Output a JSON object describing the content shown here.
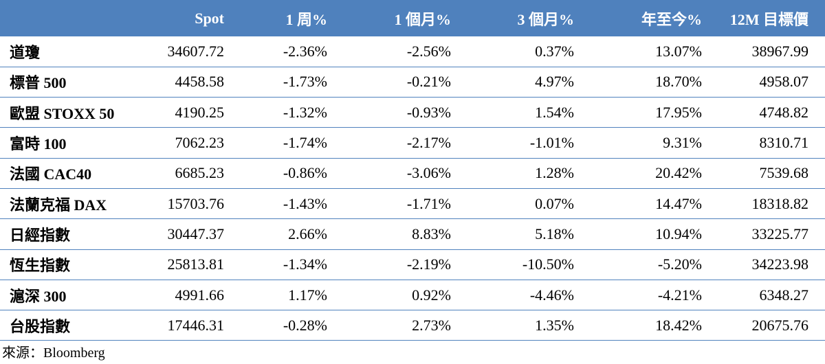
{
  "headers": [
    "",
    "Spot",
    "1 周%",
    "1 個月%",
    "3 個月%",
    "年至今%",
    "12M 目標價"
  ],
  "rows": [
    [
      "道瓊",
      "34607.72",
      "-2.36%",
      "-2.56%",
      "0.37%",
      "13.07%",
      "38967.99"
    ],
    [
      "標普 500",
      "4458.58",
      "-1.73%",
      "-0.21%",
      "4.97%",
      "18.70%",
      "4958.07"
    ],
    [
      "歐盟 STOXX 50",
      "4190.25",
      "-1.32%",
      "-0.93%",
      "1.54%",
      "17.95%",
      "4748.82"
    ],
    [
      "富時 100",
      "7062.23",
      "-1.74%",
      "-2.17%",
      "-1.01%",
      "9.31%",
      "8310.71"
    ],
    [
      "法國 CAC40",
      "6685.23",
      "-0.86%",
      "-3.06%",
      "1.28%",
      "20.42%",
      "7539.68"
    ],
    [
      "法蘭克福 DAX",
      "15703.76",
      "-1.43%",
      "-1.71%",
      "0.07%",
      "14.47%",
      "18318.82"
    ],
    [
      "日經指數",
      "30447.37",
      "2.66%",
      "8.83%",
      "5.18%",
      "10.94%",
      "33225.77"
    ],
    [
      "恆生指數",
      "25813.81",
      "-1.34%",
      "-2.19%",
      "-10.50%",
      "-5.20%",
      "34223.98"
    ],
    [
      "滬深 300",
      "4991.66",
      "1.17%",
      "0.92%",
      "-4.46%",
      "-4.21%",
      "6348.27"
    ],
    [
      "台股指數",
      "17446.31",
      "-0.28%",
      "2.73%",
      "1.35%",
      "18.42%",
      "20675.76"
    ]
  ],
  "source": "來源：Bloomberg"
}
